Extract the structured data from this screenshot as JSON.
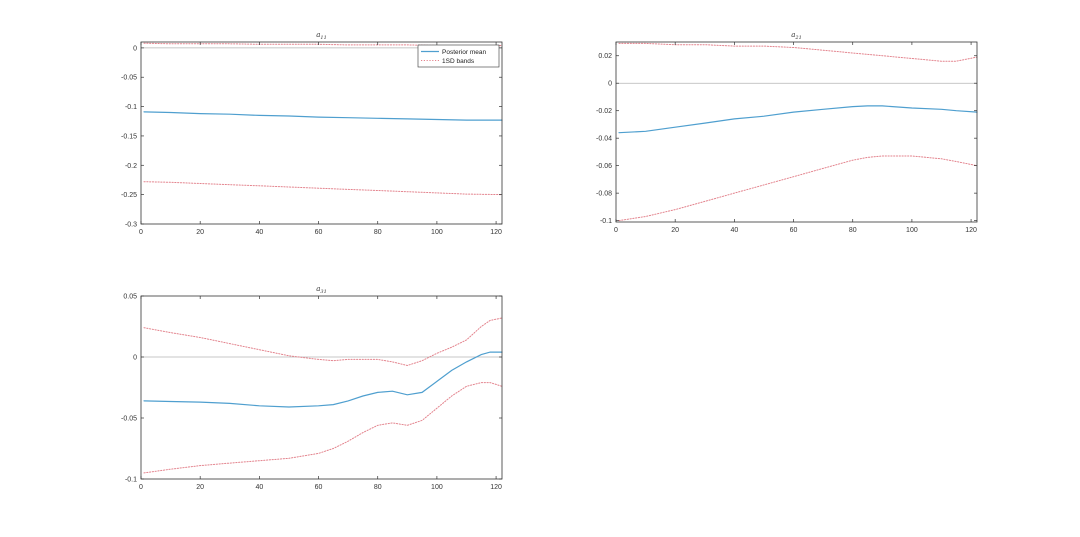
{
  "figure": {
    "legend": {
      "entries": [
        "Posterior mean",
        "1SD bands"
      ],
      "placement": "top-right of first panel"
    },
    "colors": {
      "mean": "#4f9fcf",
      "bands": "#e3838d",
      "zero_line": "#b5b5b5",
      "axes": "#333333"
    }
  },
  "chart_data": [
    {
      "type": "line",
      "title": "a11",
      "title_base": "a",
      "title_sub": "11",
      "xlim": [
        0,
        122
      ],
      "ylim": [
        -0.3,
        0.01
      ],
      "xticks": [
        0,
        20,
        40,
        60,
        80,
        100,
        120
      ],
      "xtick_labels": [
        "0",
        "20",
        "40",
        "60",
        "80",
        "100",
        "120"
      ],
      "yticks": [
        0,
        -0.05,
        -0.1,
        -0.15,
        -0.2,
        -0.25,
        -0.3
      ],
      "ytick_labels": [
        "0",
        "-0.05",
        "-0.1",
        "-0.15",
        "-0.2",
        "-0.25",
        "-0.3"
      ],
      "zero_line": true,
      "legend": true,
      "x": [
        1,
        10,
        20,
        30,
        40,
        50,
        60,
        70,
        80,
        90,
        100,
        110,
        122
      ],
      "series": [
        {
          "name": "Posterior mean",
          "style": "solid",
          "values": [
            -0.109,
            -0.11,
            -0.112,
            -0.113,
            -0.115,
            -0.116,
            -0.118,
            -0.119,
            -0.12,
            -0.121,
            -0.122,
            -0.123,
            -0.123
          ]
        },
        {
          "name": "1SD bands",
          "style": "dotted",
          "values": [
            0.008,
            0.007,
            0.007,
            0.007,
            0.006,
            0.006,
            0.006,
            0.005,
            0.005,
            0.005,
            0.004,
            0.004,
            0.004
          ]
        },
        {
          "name": "1SD bands",
          "style": "dotted",
          "values": [
            -0.228,
            -0.229,
            -0.231,
            -0.233,
            -0.235,
            -0.237,
            -0.239,
            -0.241,
            -0.243,
            -0.245,
            -0.247,
            -0.249,
            -0.25
          ]
        }
      ]
    },
    {
      "type": "line",
      "title": "a21",
      "title_base": "a",
      "title_sub": "21",
      "xlim": [
        0,
        122
      ],
      "ylim": [
        -0.101,
        0.03
      ],
      "xticks": [
        0,
        20,
        40,
        60,
        80,
        100,
        120
      ],
      "xtick_labels": [
        "0",
        "20",
        "40",
        "60",
        "80",
        "100",
        "120"
      ],
      "yticks": [
        0.02,
        0,
        -0.02,
        -0.04,
        -0.06,
        -0.08,
        -0.1
      ],
      "ytick_labels": [
        "0.02",
        "0",
        "-0.02",
        "-0.04",
        "-0.06",
        "-0.08",
        "-0.1"
      ],
      "zero_line": true,
      "legend": false,
      "x": [
        1,
        10,
        20,
        30,
        40,
        50,
        60,
        70,
        80,
        85,
        90,
        100,
        110,
        115,
        122
      ],
      "series": [
        {
          "name": "Posterior mean",
          "style": "solid",
          "values": [
            -0.036,
            -0.035,
            -0.032,
            -0.029,
            -0.026,
            -0.024,
            -0.021,
            -0.019,
            -0.017,
            -0.0165,
            -0.0165,
            -0.018,
            -0.019,
            -0.02,
            -0.021
          ]
        },
        {
          "name": "1SD bands",
          "style": "dotted",
          "values": [
            0.029,
            0.029,
            0.028,
            0.028,
            0.027,
            0.027,
            0.026,
            0.024,
            0.022,
            0.021,
            0.02,
            0.018,
            0.016,
            0.016,
            0.019
          ]
        },
        {
          "name": "1SD bands",
          "style": "dotted",
          "values": [
            -0.1,
            -0.097,
            -0.092,
            -0.086,
            -0.08,
            -0.074,
            -0.068,
            -0.062,
            -0.056,
            -0.054,
            -0.053,
            -0.053,
            -0.055,
            -0.057,
            -0.06
          ]
        }
      ]
    },
    {
      "type": "line",
      "title": "a31",
      "title_base": "a",
      "title_sub": "31",
      "xlim": [
        0,
        122
      ],
      "ylim": [
        -0.1,
        0.05
      ],
      "xticks": [
        0,
        20,
        40,
        60,
        80,
        100,
        120
      ],
      "xtick_labels": [
        "0",
        "20",
        "40",
        "60",
        "80",
        "100",
        "120"
      ],
      "yticks": [
        0.05,
        0,
        -0.05,
        -0.1
      ],
      "ytick_labels": [
        "0.05",
        "0",
        "-0.05",
        "-0.1"
      ],
      "zero_line": true,
      "legend": false,
      "x": [
        1,
        10,
        20,
        30,
        40,
        50,
        60,
        65,
        70,
        75,
        80,
        85,
        90,
        95,
        100,
        105,
        110,
        115,
        118,
        122
      ],
      "series": [
        {
          "name": "Posterior mean",
          "style": "solid",
          "values": [
            -0.036,
            -0.0365,
            -0.037,
            -0.038,
            -0.04,
            -0.041,
            -0.04,
            -0.039,
            -0.036,
            -0.032,
            -0.029,
            -0.028,
            -0.031,
            -0.029,
            -0.02,
            -0.011,
            -0.004,
            0.002,
            0.004,
            0.004
          ]
        },
        {
          "name": "1SD bands",
          "style": "dotted",
          "values": [
            0.024,
            0.02,
            0.016,
            0.011,
            0.006,
            0.001,
            -0.002,
            -0.003,
            -0.002,
            -0.002,
            -0.002,
            -0.004,
            -0.007,
            -0.003,
            0.003,
            0.008,
            0.014,
            0.025,
            0.03,
            0.032
          ]
        },
        {
          "name": "1SD bands",
          "style": "dotted",
          "values": [
            -0.095,
            -0.092,
            -0.089,
            -0.087,
            -0.085,
            -0.083,
            -0.079,
            -0.075,
            -0.069,
            -0.062,
            -0.056,
            -0.054,
            -0.056,
            -0.052,
            -0.042,
            -0.032,
            -0.024,
            -0.021,
            -0.021,
            -0.024
          ]
        }
      ]
    }
  ]
}
